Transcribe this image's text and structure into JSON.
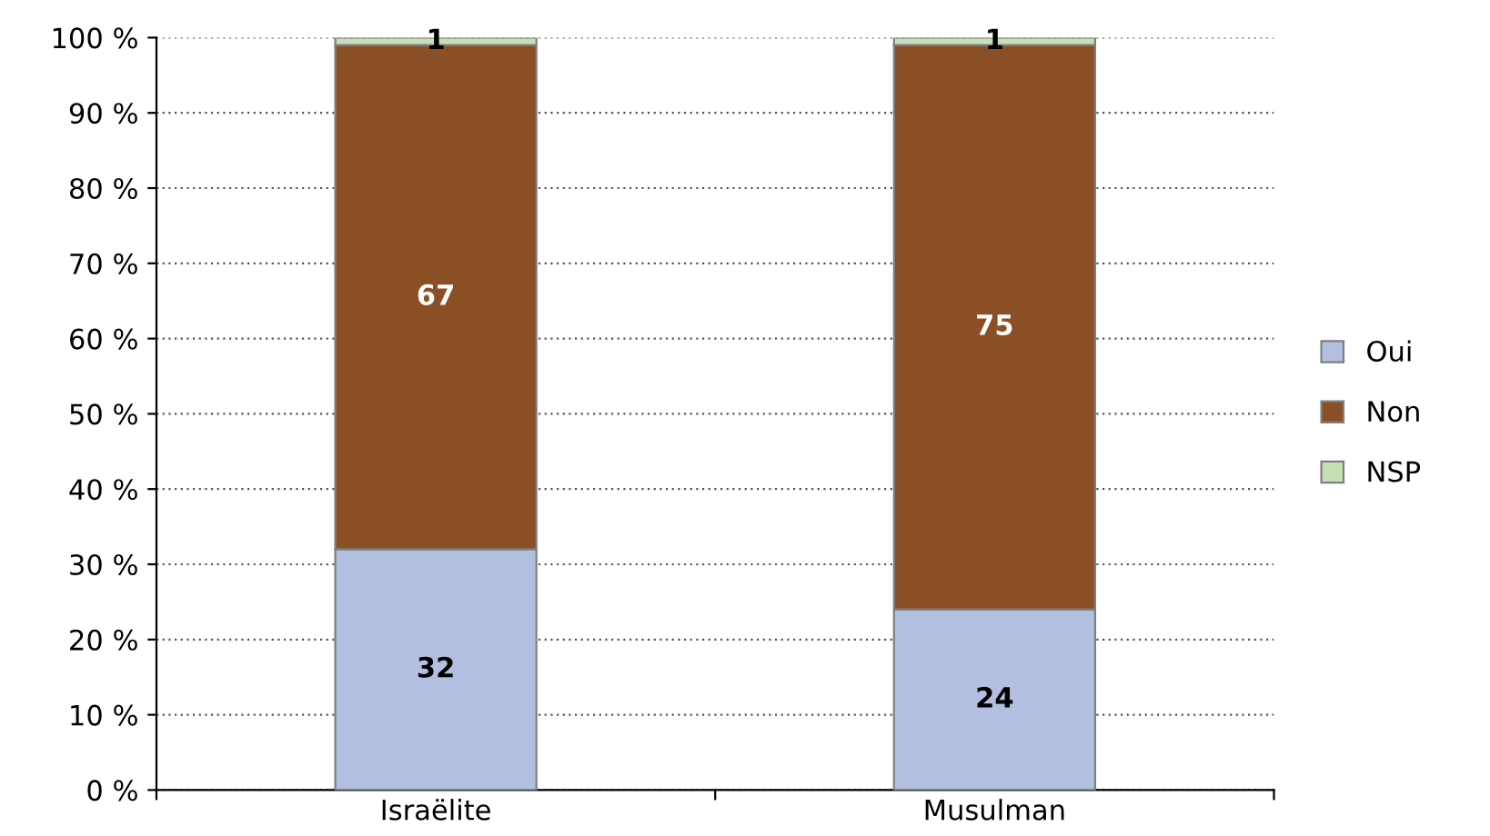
{
  "chart_data": {
    "type": "bar",
    "stacked": true,
    "categories": [
      "Israëlite",
      "Musulman"
    ],
    "series": [
      {
        "name": "Oui",
        "color": "#b3bfe0",
        "values": [
          32,
          24
        ]
      },
      {
        "name": "Non",
        "color": "#8b4f26",
        "values": [
          67,
          75
        ]
      },
      {
        "name": "NSP",
        "color": "#c6e0b4",
        "values": [
          1,
          1
        ]
      }
    ],
    "ylim": [
      0,
      100
    ],
    "yticks": [
      {
        "value": 0,
        "label": "0 %"
      },
      {
        "value": 10,
        "label": "10 %"
      },
      {
        "value": 20,
        "label": "20 %"
      },
      {
        "value": 30,
        "label": "30 %"
      },
      {
        "value": 40,
        "label": "40 %"
      },
      {
        "value": 50,
        "label": "50 %"
      },
      {
        "value": 60,
        "label": "60 %"
      },
      {
        "value": 70,
        "label": "70 %"
      },
      {
        "value": 80,
        "label": "80 %"
      },
      {
        "value": 90,
        "label": "90 %"
      },
      {
        "value": 100,
        "label": "100 %"
      }
    ],
    "grid": "y",
    "legend": "right",
    "data_labels": true
  }
}
